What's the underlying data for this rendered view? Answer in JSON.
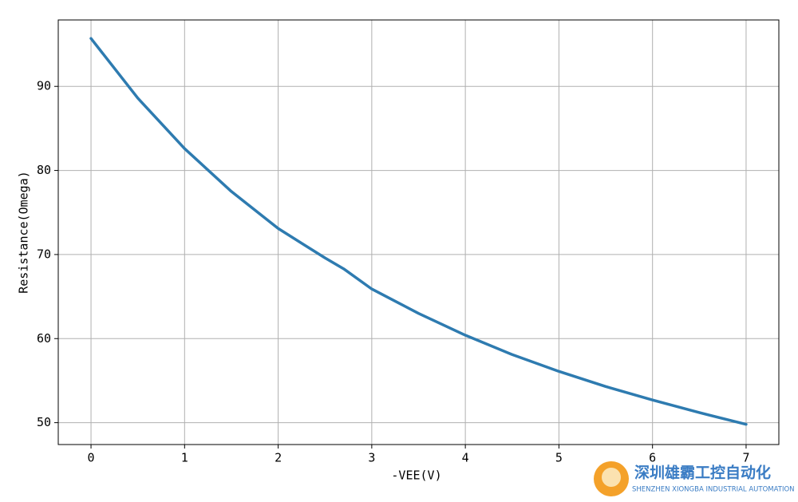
{
  "chart_data": {
    "type": "line",
    "xlabel": "-VEE(V)",
    "ylabel": "Resistance(Omega)",
    "x": [
      0,
      0.5,
      1,
      1.5,
      2,
      2.5,
      2.7,
      3,
      3.5,
      4,
      4.5,
      5,
      5.5,
      6,
      6.5,
      7
    ],
    "series": [
      {
        "name": "Resistance",
        "color": "#2e7bb0",
        "values": [
          95.7,
          88.6,
          82.6,
          77.5,
          73.1,
          69.6,
          68.3,
          65.9,
          63.0,
          60.4,
          58.1,
          56.1,
          54.3,
          52.7,
          51.2,
          49.8
        ]
      }
    ],
    "xlim": [
      -0.35,
      7.35
    ],
    "ylim": [
      47.4,
      97.9
    ],
    "xticks": [
      0,
      1,
      2,
      3,
      4,
      5,
      6,
      7
    ],
    "yticks": [
      50,
      60,
      70,
      80,
      90
    ],
    "grid": true
  },
  "watermark": {
    "title": "深圳雄霸工控自动化",
    "subtitle": "SHENZHEN XIONGBA INDUSTRIAL AUTOMATION"
  }
}
